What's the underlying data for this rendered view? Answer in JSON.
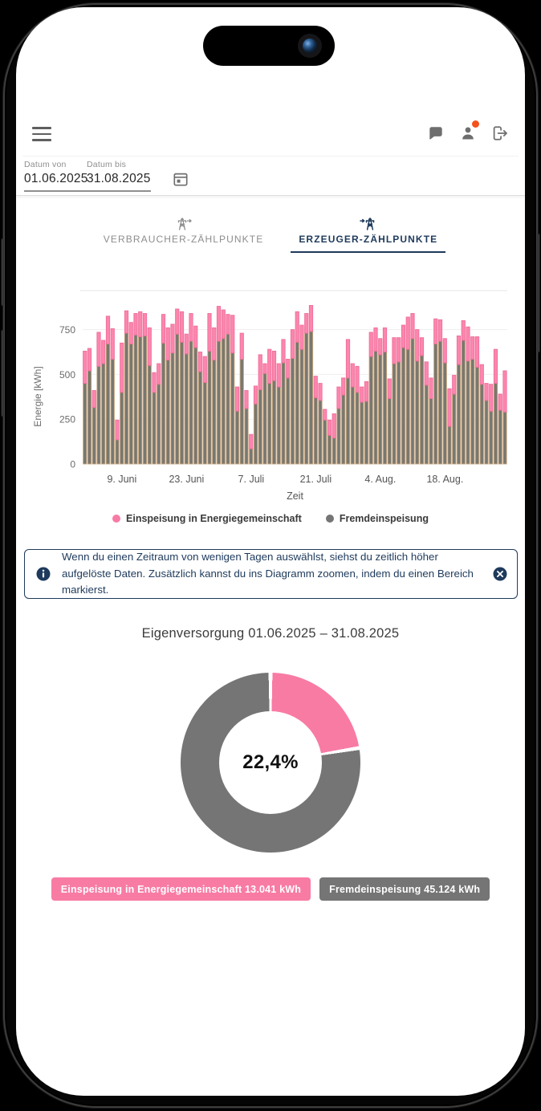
{
  "colors": {
    "accent_navy": "#1e3a5c",
    "pink": "#f87ba4",
    "gray": "#757575",
    "bar_pink_fill": "#fc86ad",
    "bar_pink_stroke": "#ee6f9b",
    "bar_gray_fill": "#787871",
    "bar_gray_stroke": "#c8a47b",
    "notification_orange": "#f4511e",
    "header_icon_gray": "#6e6e6e"
  },
  "date_filter": {
    "from_label": "Datum von",
    "from_value": "01.06.2025",
    "to_label": "Datum bis",
    "to_value": "31.08.2025"
  },
  "tabs": [
    {
      "label": "VERBRAUCHER-ZÄHLPUNKTE",
      "active": false
    },
    {
      "label": "ERZEUGER-ZÄHLPUNKTE",
      "active": true
    }
  ],
  "info_box": {
    "text": "Wenn du einen Zeitraum von wenigen Tagen auswählst, siehst du zeitlich höher aufgelöste Daten. Zusätzlich kannst du ins Diagramm zoomen, indem du einen Bereich markierst."
  },
  "pie_section": {
    "title": "Eigenversorgung 01.06.2025 – 31.08.2025"
  },
  "badges": [
    {
      "label": "Einspeisung in Energiegemeinschaft 13.041 kWh",
      "color": "#f87ba4"
    },
    {
      "label": "Fremdeinspeisung 45.124 kWh",
      "color": "#757575"
    }
  ],
  "chart_data": [
    {
      "type": "bar",
      "stacked": true,
      "xlabel": "Zeit",
      "ylabel": "Energie [kWh]",
      "ylim": [
        0,
        900
      ],
      "yticks": [
        0,
        250,
        500,
        750
      ],
      "x_range": "01.06.2025 – 31.08.2025",
      "x_unit": "day",
      "xticks": [
        {
          "index": 8,
          "label": "9. Juni"
        },
        {
          "index": 22,
          "label": "23. Juni"
        },
        {
          "index": 36,
          "label": "7. Juli"
        },
        {
          "index": 50,
          "label": "21. Juli"
        },
        {
          "index": 64,
          "label": "4. Aug."
        },
        {
          "index": 78,
          "label": "18. Aug."
        }
      ],
      "series": [
        {
          "name": "Fremdeinspeisung",
          "color": "#787871",
          "stroke": "#c8a47b",
          "values": [
            450,
            520,
            315,
            545,
            560,
            670,
            585,
            135,
            400,
            730,
            670,
            720,
            710,
            715,
            550,
            400,
            445,
            675,
            580,
            620,
            725,
            680,
            615,
            685,
            650,
            515,
            455,
            630,
            580,
            685,
            700,
            725,
            620,
            295,
            585,
            310,
            85,
            335,
            415,
            505,
            450,
            465,
            430,
            565,
            480,
            590,
            680,
            640,
            730,
            740,
            370,
            355,
            245,
            160,
            145,
            310,
            385,
            480,
            430,
            400,
            345,
            350,
            600,
            630,
            610,
            625,
            365,
            560,
            570,
            650,
            640,
            700,
            575,
            605,
            440,
            365,
            670,
            685,
            565,
            210,
            390,
            555,
            690,
            575,
            585,
            540,
            445,
            355,
            295,
            450,
            300,
            290
          ]
        },
        {
          "name": "Einspeisung in Energiegemeinschaft",
          "color": "#fc86ad",
          "stroke": "#ee6f9b",
          "values": [
            180,
            125,
            95,
            190,
            130,
            155,
            170,
            110,
            275,
            125,
            120,
            120,
            140,
            125,
            210,
            110,
            115,
            160,
            180,
            160,
            140,
            170,
            110,
            155,
            120,
            110,
            145,
            210,
            180,
            195,
            160,
            110,
            210,
            135,
            145,
            100,
            80,
            100,
            195,
            55,
            190,
            165,
            130,
            130,
            105,
            160,
            170,
            135,
            110,
            145,
            120,
            95,
            60,
            85,
            135,
            120,
            95,
            215,
            130,
            145,
            85,
            110,
            135,
            130,
            90,
            135,
            110,
            145,
            135,
            125,
            180,
            140,
            175,
            100,
            130,
            115,
            140,
            120,
            135,
            210,
            105,
            160,
            110,
            190,
            125,
            170,
            110,
            95,
            150,
            190,
            90,
            230
          ]
        }
      ],
      "legend": [
        {
          "label": "Einspeisung in Energiegemeinschaft",
          "color": "#f87ba4"
        },
        {
          "label": "Fremdeinspeisung",
          "color": "#757575"
        }
      ],
      "grid": true,
      "legend_position": "bottom"
    },
    {
      "type": "pie",
      "title": "Eigenversorgung 01.06.2025 – 31.08.2025",
      "center_label": "22,4%",
      "slices": [
        {
          "label": "Einspeisung in Energiegemeinschaft",
          "value_kwh": 13041,
          "pct": 22.4,
          "color": "#f87ba4"
        },
        {
          "label": "Fremdeinspeisung",
          "value_kwh": 45124,
          "pct": 77.6,
          "color": "#757575"
        }
      ]
    }
  ]
}
